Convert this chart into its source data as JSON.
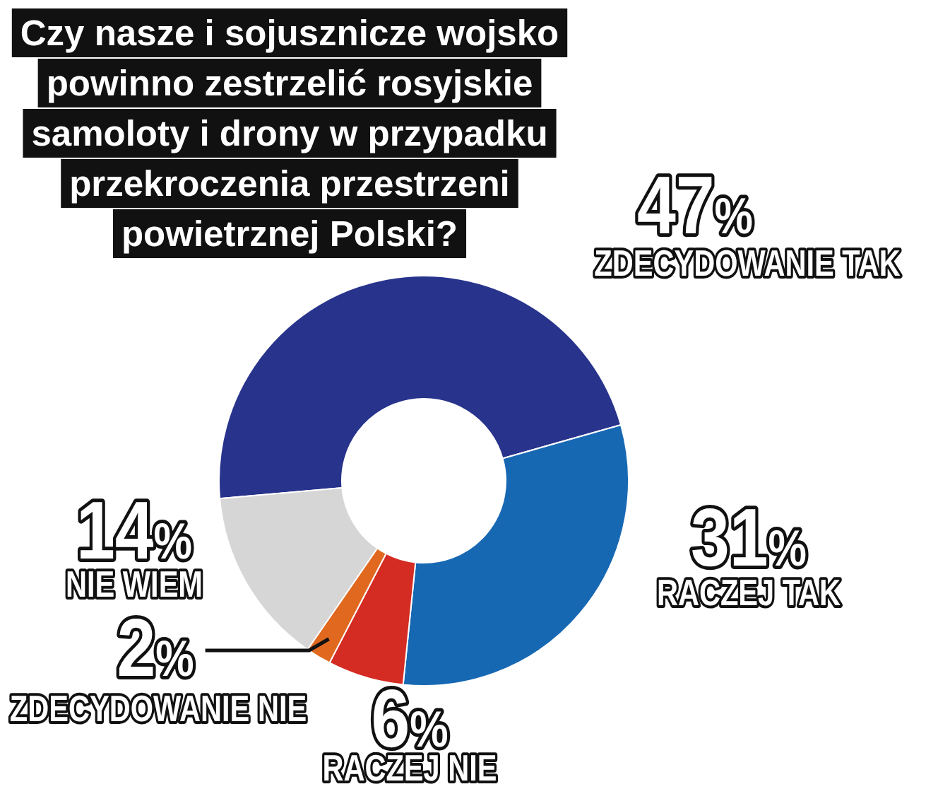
{
  "chart_data": {
    "type": "donut",
    "title": "Czy nasze i sojusznicze wojsko powinno zestrzelić rosyjskie samoloty i drony w przypadku przekroczenia przestrzeni powietrznej Polski?",
    "categories": [
      "ZDECYDOWANIE TAK",
      "RACZEJ TAK",
      "RACZEJ NIE",
      "ZDECYDOWANIE NIE",
      "NIE WIEM"
    ],
    "values": [
      47,
      31,
      6,
      2,
      14
    ],
    "colors": [
      "#28338c",
      "#1768b3",
      "#d42b22",
      "#e0681f",
      "#d6d6d6"
    ],
    "value_labels": [
      "47%",
      "31%",
      "6%",
      "2%",
      "14%"
    ]
  }
}
